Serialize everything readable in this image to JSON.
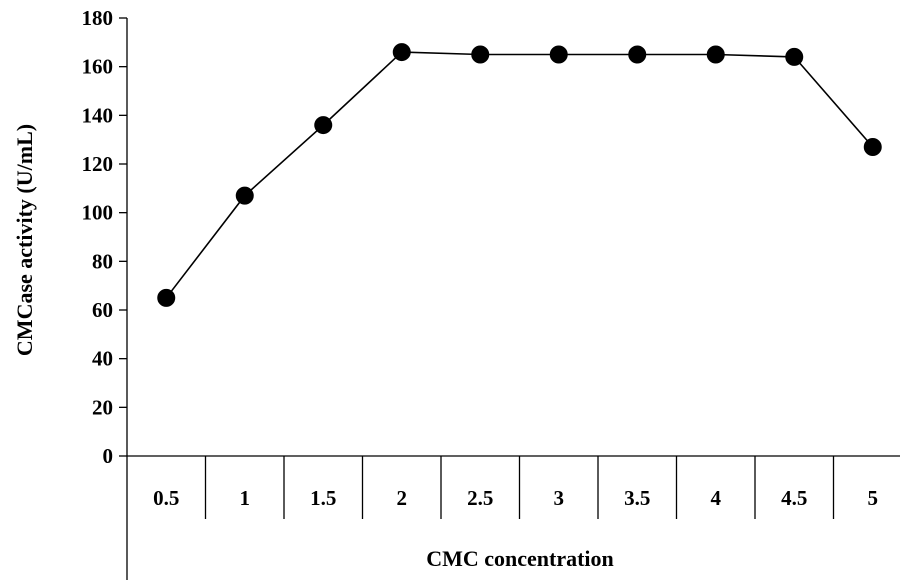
{
  "chart_data": {
    "type": "line",
    "categories": [
      "0.5",
      "1",
      "1.5",
      "2",
      "2.5",
      "3",
      "3.5",
      "4",
      "4.5",
      "5"
    ],
    "series": [
      {
        "values": [
          65,
          107,
          136,
          166,
          165,
          165,
          165,
          165,
          164,
          127
        ],
        "color": "#000000",
        "marker": "circle"
      }
    ],
    "ylabel": "CMCase activity (U/mL)",
    "xlabel": "CMC concentration",
    "ylim": [
      0,
      180
    ],
    "yticks": [
      "0",
      "20",
      "40",
      "60",
      "80",
      "100",
      "120",
      "140",
      "160",
      "180"
    ],
    "grid": false,
    "legend": "none"
  }
}
